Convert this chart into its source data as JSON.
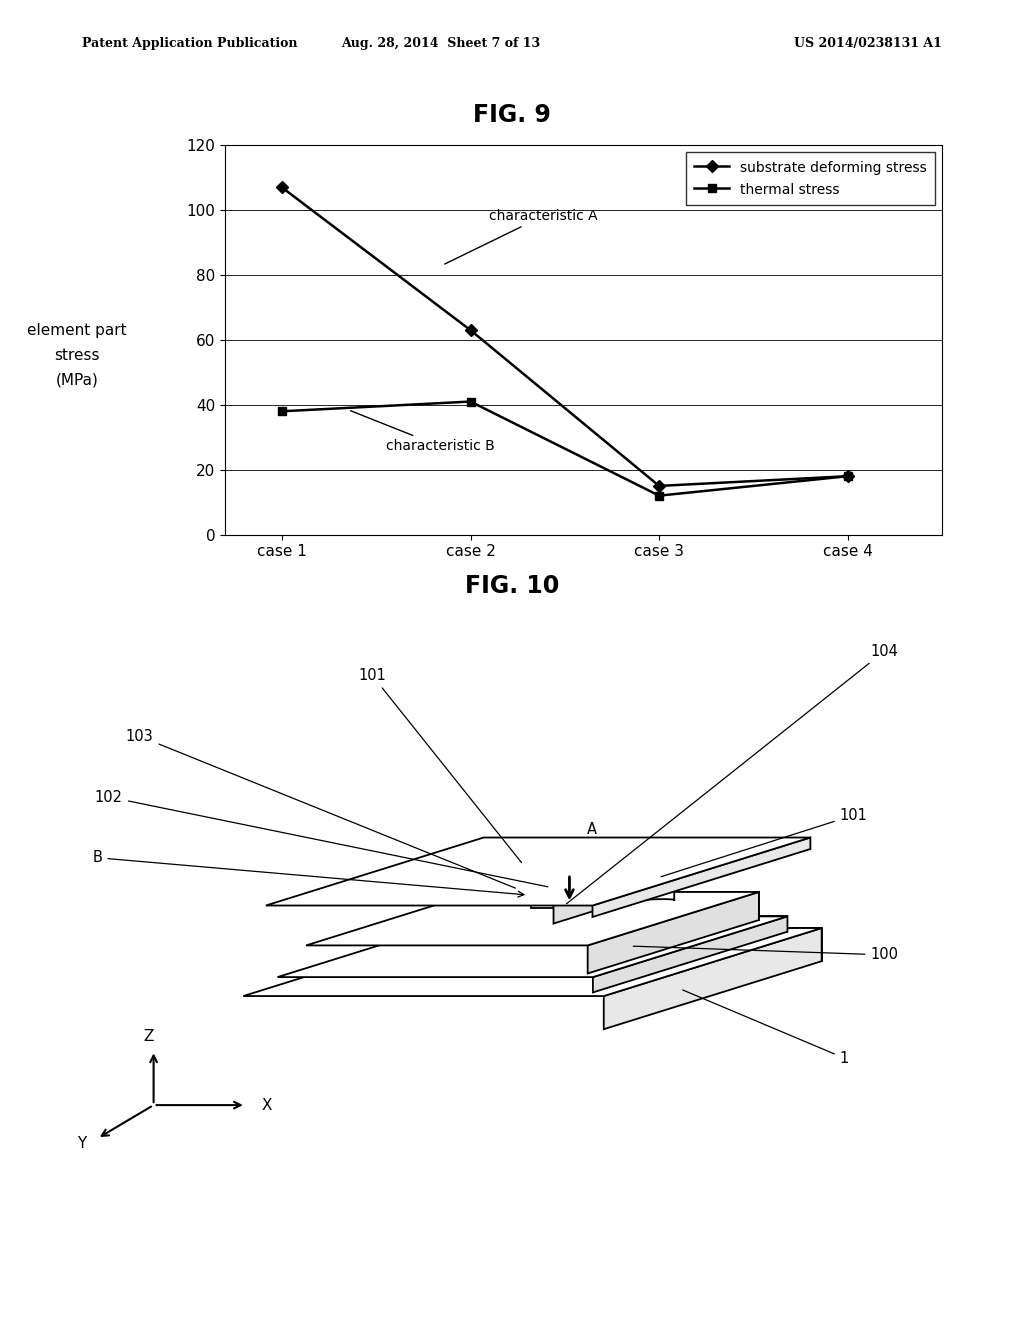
{
  "fig9_title": "FIG. 9",
  "fig10_title": "FIG. 10",
  "header_left": "Patent Application Publication",
  "header_mid": "Aug. 28, 2014  Sheet 7 of 13",
  "header_right": "US 2014/0238131 A1",
  "cases": [
    "case 1",
    "case 2",
    "case 3",
    "case 4"
  ],
  "series_A_label": "substrate deforming stress",
  "series_B_label": "thermal stress",
  "series_A_values": [
    107,
    63,
    15,
    18
  ],
  "series_B_values": [
    38,
    41,
    12,
    18
  ],
  "ylabel_line1": "element part",
  "ylabel_line2": "stress",
  "ylabel_line3": "(MPa)",
  "ylim": [
    0,
    120
  ],
  "yticks": [
    0,
    20,
    40,
    60,
    80,
    100,
    120
  ],
  "annot_A": "characteristic A",
  "annot_B": "characteristic B",
  "bg_color": "#ffffff",
  "line_color": "#000000"
}
